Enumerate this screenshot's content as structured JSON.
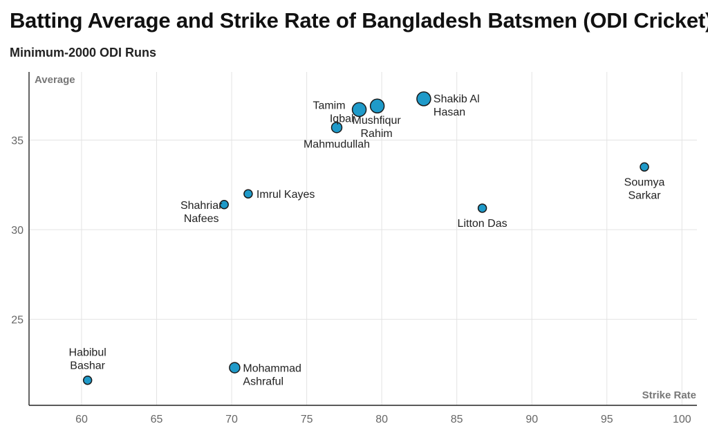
{
  "title": "Batting Average and Strike Rate of Bangladesh Batsmen (ODI Cricket)",
  "subtitle": "Minimum-2000 ODI Runs",
  "colors": {
    "point_fill": "#1f9ac9",
    "point_stroke": "#1a1a1a",
    "grid": "#e3e3e3"
  },
  "chart_data": {
    "type": "scatter",
    "title": "Batting Average and Strike Rate of Bangladesh Batsmen (ODI Cricket)",
    "subtitle": "Minimum-2000 ODI Runs",
    "xlabel": "Strike Rate",
    "ylabel": "Average",
    "xlim": [
      56.5,
      101
    ],
    "ylim": [
      20.2,
      38.8
    ],
    "x_ticks": [
      60,
      65,
      70,
      75,
      80,
      85,
      90,
      95,
      100
    ],
    "y_ticks": [
      25,
      30,
      35
    ],
    "grid": true,
    "size_encoding": "runs (unlabeled)",
    "points": [
      {
        "name": "Tamim Iqbal",
        "x": 78.5,
        "y": 36.7,
        "size": "large"
      },
      {
        "name": "Mushfiqur Rahim",
        "x": 79.7,
        "y": 36.9,
        "size": "large"
      },
      {
        "name": "Shakib Al Hasan",
        "x": 82.8,
        "y": 37.3,
        "size": "large"
      },
      {
        "name": "Mahmudullah",
        "x": 77.0,
        "y": 35.7,
        "size": "medium"
      },
      {
        "name": "Soumya Sarkar",
        "x": 97.5,
        "y": 33.5,
        "size": "small"
      },
      {
        "name": "Imrul Kayes",
        "x": 71.1,
        "y": 32.0,
        "size": "small"
      },
      {
        "name": "Shahriar Nafees",
        "x": 69.5,
        "y": 31.4,
        "size": "small"
      },
      {
        "name": "Litton Das",
        "x": 86.7,
        "y": 31.2,
        "size": "small"
      },
      {
        "name": "Mohammad Ashraful",
        "x": 70.2,
        "y": 22.3,
        "size": "medium"
      },
      {
        "name": "Habibul Bashar",
        "x": 60.4,
        "y": 21.6,
        "size": "small"
      }
    ]
  }
}
